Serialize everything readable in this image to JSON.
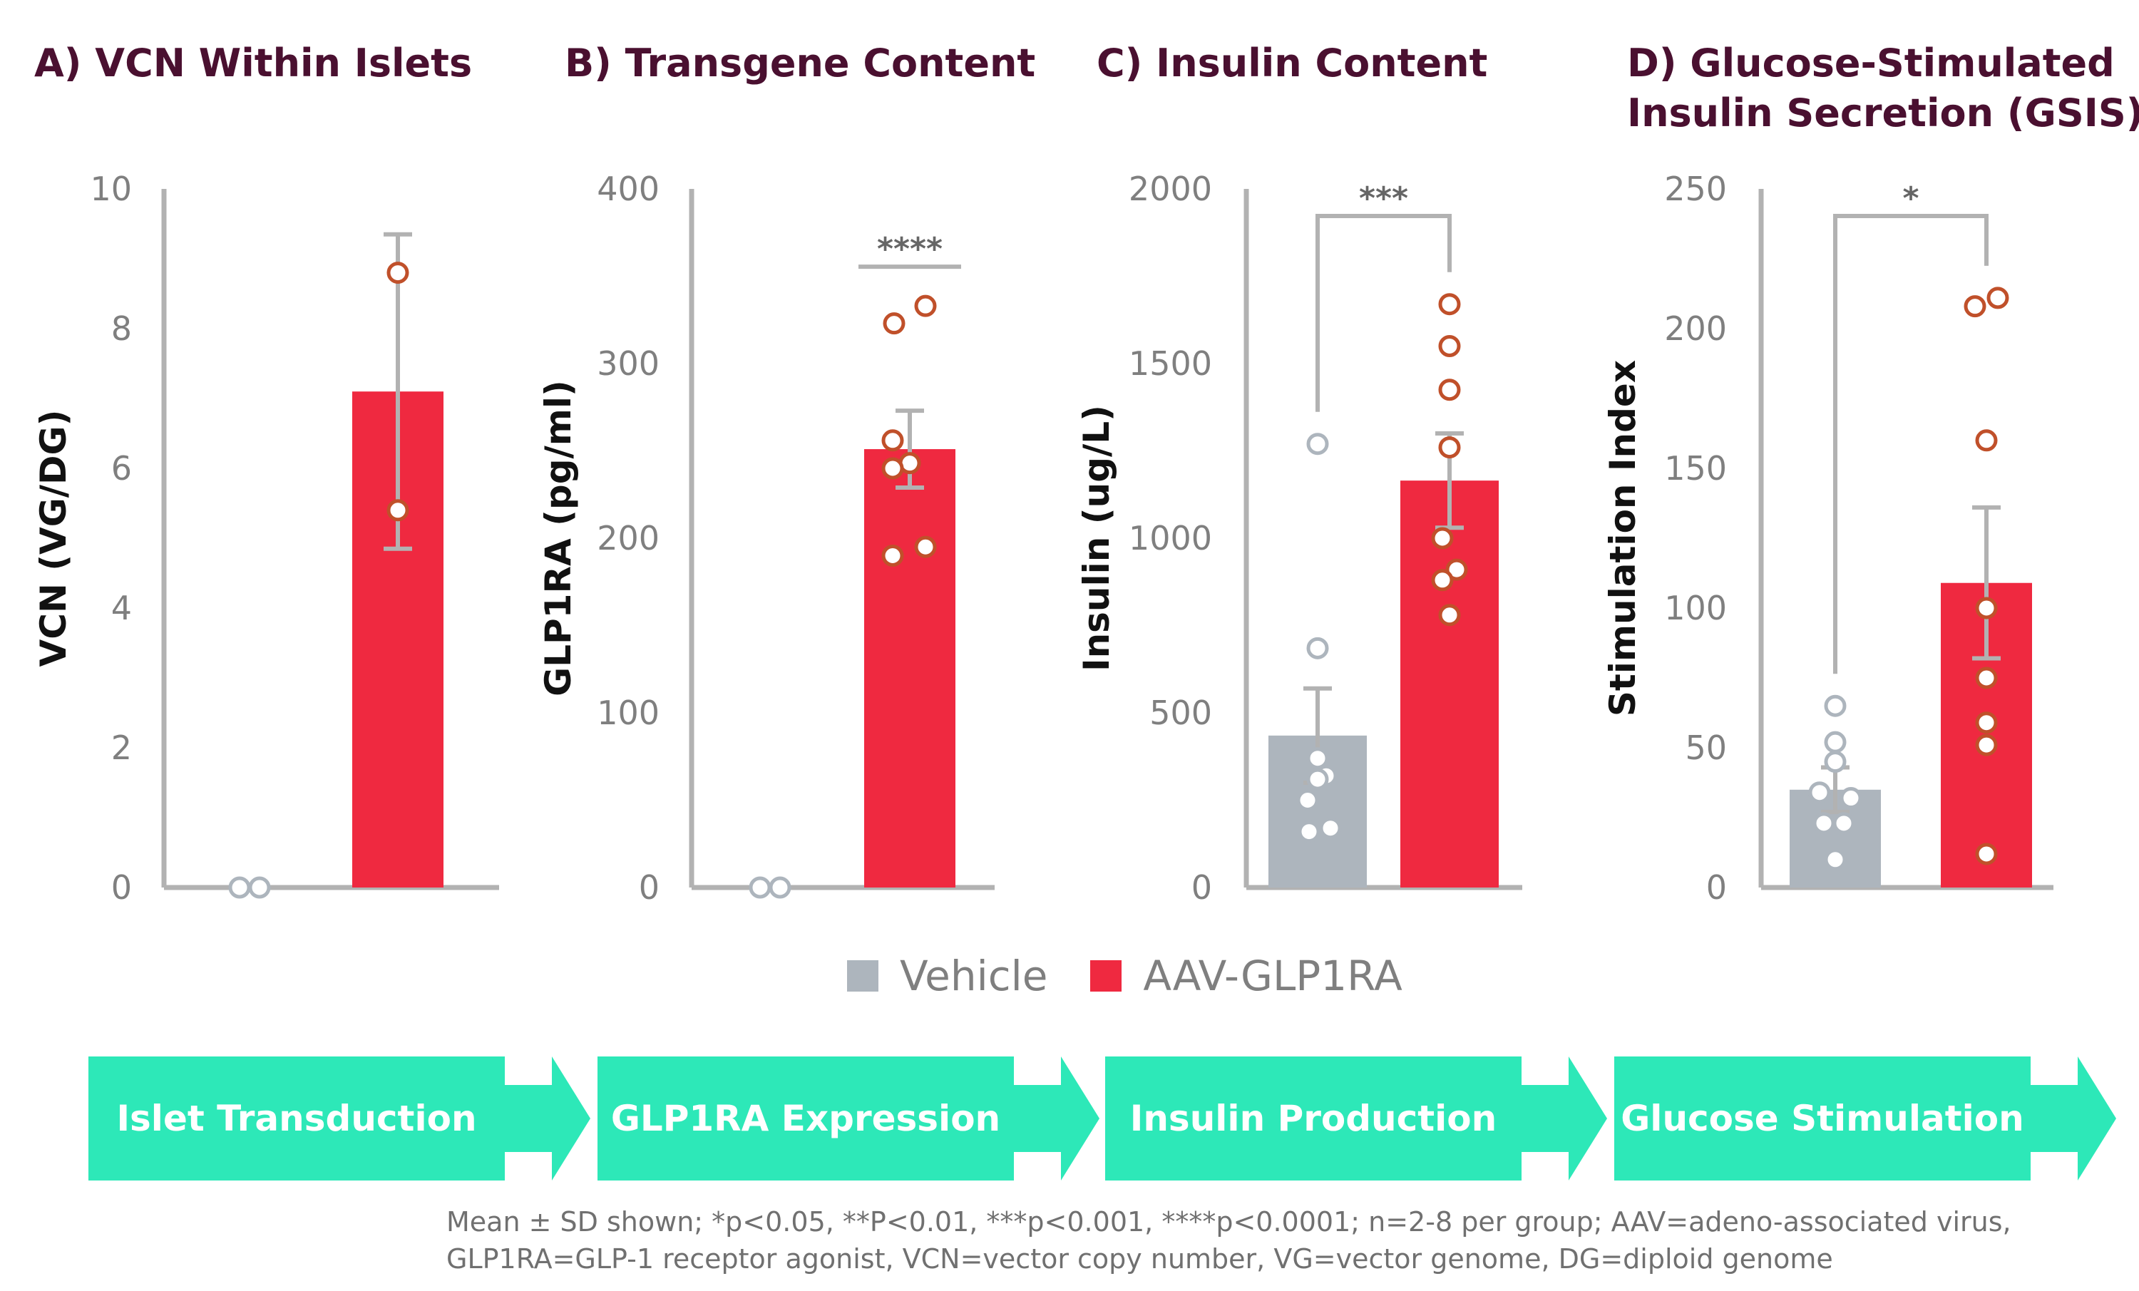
{
  "titles": {
    "a": "A) VCN Within Islets",
    "b": "B) Transgene Content",
    "c": "C) Insulin Content",
    "d1": "D) Glucose-Stimulated",
    "d2": "Insulin Secretion (GSIS)"
  },
  "colors": {
    "vehicle": "#adb5bd",
    "aav": "#ef2940",
    "point_edge": "#c0502a",
    "axis": "#b2b2b2",
    "arrow": "#2de8b8",
    "title": "#4a1030"
  },
  "legend": {
    "vehicle": "Vehicle",
    "aav": "AAV-GLP1RA"
  },
  "flow": [
    "Islet Transduction",
    "GLP1RA Expression",
    "Insulin Production",
    "Glucose Stimulation"
  ],
  "footnote": {
    "line1": "Mean ± SD shown; *p<0.05, **P<0.01, ***p<0.001, ****p<0.0001; n=2-8 per group; AAV=adeno-associated virus,",
    "line2": "GLP1RA=GLP-1 receptor agonist, VCN=vector copy number, VG=vector genome, DG=diploid genome"
  },
  "chart_data": [
    {
      "type": "bar",
      "title": "A) VCN Within Islets",
      "ylabel": "VCN (VG/DG)",
      "ylim": [
        0,
        10
      ],
      "yticks": [
        0,
        2,
        4,
        6,
        8,
        10
      ],
      "categories": [
        "Vehicle",
        "AAV-GLP1RA"
      ],
      "series": [
        {
          "name": "Vehicle",
          "mean": 0,
          "sd": null,
          "points": [
            0,
            0
          ]
        },
        {
          "name": "AAV-GLP1RA",
          "mean": 7.1,
          "sd": 2.25,
          "points": [
            8.8,
            5.4
          ]
        }
      ],
      "significance": null
    },
    {
      "type": "bar",
      "title": "B) Transgene Content",
      "ylabel": "GLP1RA (pg/ml)",
      "ylim": [
        0,
        400
      ],
      "yticks": [
        0,
        100,
        200,
        300,
        400
      ],
      "categories": [
        "Vehicle",
        "AAV-GLP1RA"
      ],
      "series": [
        {
          "name": "Vehicle",
          "mean": 0,
          "sd": null,
          "points": [
            0,
            0
          ]
        },
        {
          "name": "AAV-GLP1RA",
          "mean": 251,
          "sd": 22,
          "points": [
            323,
            333,
            256,
            243,
            240,
            195,
            190
          ]
        }
      ],
      "significance": "****"
    },
    {
      "type": "bar",
      "title": "C) Insulin Content",
      "ylabel": "Insulin (ug/L)",
      "ylim": [
        0,
        2000
      ],
      "yticks": [
        0,
        500,
        1000,
        1500,
        2000
      ],
      "categories": [
        "Vehicle",
        "AAV-GLP1RA"
      ],
      "series": [
        {
          "name": "Vehicle",
          "mean": 435,
          "sd": 135,
          "points": [
            1270,
            685,
            370,
            320,
            310,
            250,
            170,
            160
          ]
        },
        {
          "name": "AAV-GLP1RA",
          "mean": 1165,
          "sd": 135,
          "points": [
            1670,
            1550,
            1425,
            1260,
            1000,
            910,
            880,
            780
          ]
        }
      ],
      "significance": "***"
    },
    {
      "type": "bar",
      "title": "D) Glucose-Stimulated Insulin Secretion (GSIS)",
      "ylabel": "Stimulation Index",
      "ylim": [
        0,
        250
      ],
      "yticks": [
        0,
        50,
        100,
        150,
        200,
        250
      ],
      "categories": [
        "Vehicle",
        "AAV-GLP1RA"
      ],
      "series": [
        {
          "name": "Vehicle",
          "mean": 35,
          "sd": 8,
          "points": [
            65,
            52,
            45,
            34,
            32,
            23,
            23,
            10
          ]
        },
        {
          "name": "AAV-GLP1RA",
          "mean": 109,
          "sd": 27,
          "points": [
            208,
            211,
            160,
            100,
            75,
            59,
            51,
            12
          ]
        }
      ],
      "significance": "*"
    }
  ]
}
